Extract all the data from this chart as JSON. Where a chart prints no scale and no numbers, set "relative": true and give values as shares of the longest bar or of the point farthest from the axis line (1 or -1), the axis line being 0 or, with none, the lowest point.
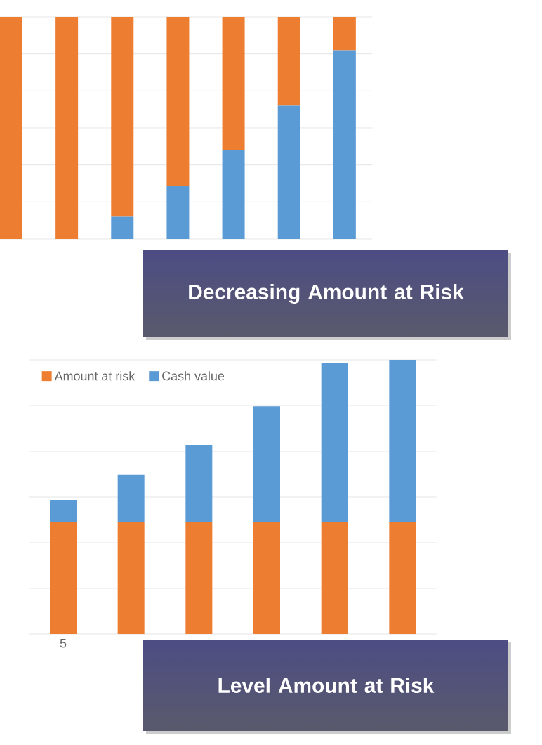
{
  "chart_data": [
    {
      "type": "bar",
      "title": "Decreasing Amount at Risk",
      "categories": [
        null,
        null,
        null,
        null,
        null,
        null,
        null
      ],
      "stacked": true,
      "relative": true,
      "grid": "y",
      "series": [
        {
          "color": "#5b9bd5",
          "values": [
            0,
            0,
            0.1,
            0.24,
            0.4,
            0.6,
            0.85
          ]
        },
        {
          "color": "#ed7d31",
          "values": [
            1,
            1,
            0.9,
            0.76,
            0.6,
            0.4,
            0.15
          ]
        }
      ]
    },
    {
      "type": "bar",
      "title": "Level Amount at Risk",
      "categories": [
        "5",
        null,
        null,
        null,
        null,
        null
      ],
      "stacked": true,
      "relative": true,
      "grid": "y",
      "legend": "top left",
      "series": [
        {
          "name": "Amount at risk",
          "color": "#ed7d31",
          "values": [
            0.41,
            0.41,
            0.41,
            0.41,
            0.41,
            0.41
          ]
        },
        {
          "name": "Cash value",
          "color": "#5b9bd5",
          "values": [
            0.08,
            0.17,
            0.28,
            0.42,
            0.58,
            0.59
          ]
        }
      ]
    }
  ]
}
